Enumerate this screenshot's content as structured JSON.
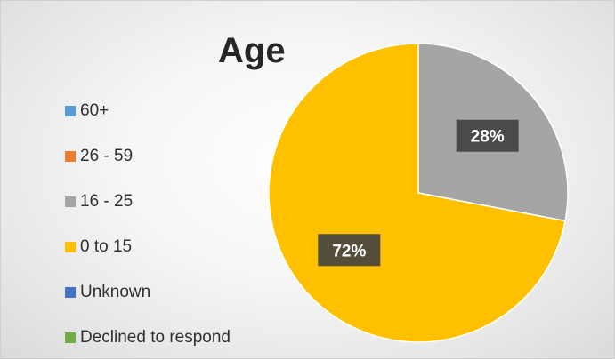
{
  "chart_data": {
    "type": "pie",
    "title": "Age",
    "categories": [
      "60+",
      "26 - 59",
      "16 - 25",
      "0 to 15",
      "Unknown",
      "Declined to respond"
    ],
    "values": [
      0,
      0,
      28,
      72,
      0,
      0
    ],
    "data_labels": [
      "",
      "",
      "28%",
      "72%",
      "",
      ""
    ],
    "colors": [
      "#5b9bd5",
      "#ed7d31",
      "#a5a5a5",
      "#ffc000",
      "#4472c4",
      "#70ad47"
    ],
    "legend_position": "left",
    "start_angle": "top, clockwise"
  }
}
